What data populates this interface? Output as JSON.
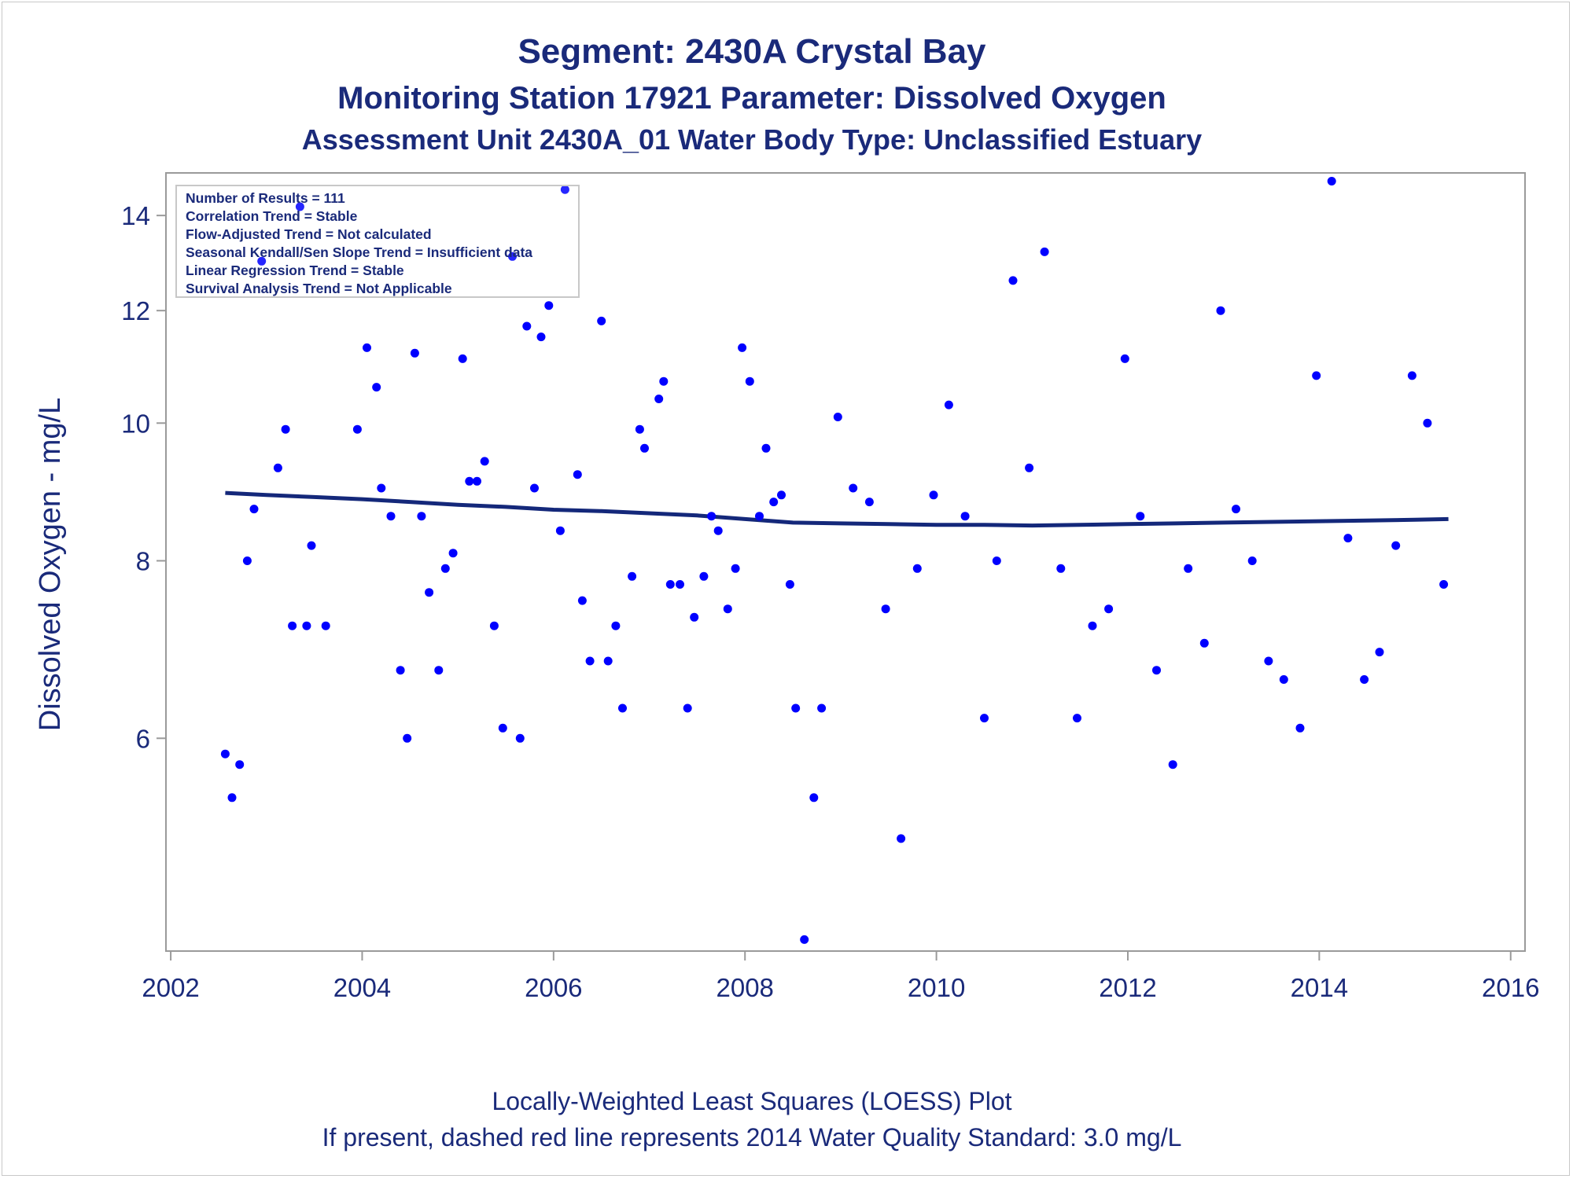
{
  "chart_data": {
    "type": "scatter",
    "title": "Segment: 2430A  Crystal Bay",
    "subtitle": "Monitoring Station 17921 Parameter: Dissolved Oxygen",
    "subtitle2": "Assessment Unit 2430A_01   Water Body Type: Unclassified Estuary",
    "xlabel": "",
    "ylabel": "Dissolved Oxygen - mg/L",
    "y_scale": "log",
    "xlim": [
      2001.95,
      2016.15
    ],
    "ylim": [
      4.25,
      15.0
    ],
    "x_ticks": [
      "2002",
      "2004",
      "2006",
      "2008",
      "2010",
      "2012",
      "2014",
      "2016"
    ],
    "y_ticks": [
      "6",
      "8",
      "10",
      "12",
      "14"
    ],
    "stats_box": [
      "Number of Results = 111",
      "Correlation Trend = Stable",
      "Flow-Adjusted Trend = Not calculated",
      "Seasonal Kendall/Sen Slope Trend = Insufficient data",
      "Linear Regression Trend = Stable",
      "Survival Analysis Trend = Not Applicable"
    ],
    "footnotes": [
      "Locally-Weighted Least Squares (LOESS) Plot",
      "If present, dashed red line represents 2014 Water Quality Standard: 3.0 mg/L"
    ],
    "colors": {
      "points": "#0000ff",
      "loess": "#14287a",
      "text": "#1a2a7a",
      "axis": "#9a9a9a"
    },
    "series": [
      {
        "type": "scatter",
        "points": [
          [
            2002.57,
            5.85
          ],
          [
            2002.64,
            5.45
          ],
          [
            2002.72,
            5.75
          ],
          [
            2002.8,
            8.0
          ],
          [
            2002.87,
            8.7
          ],
          [
            2002.95,
            13.0
          ],
          [
            2003.12,
            9.3
          ],
          [
            2003.2,
            9.9
          ],
          [
            2003.27,
            7.2
          ],
          [
            2003.35,
            14.2
          ],
          [
            2003.42,
            7.2
          ],
          [
            2003.47,
            8.2
          ],
          [
            2003.62,
            7.2
          ],
          [
            2003.95,
            9.9
          ],
          [
            2004.05,
            11.3
          ],
          [
            2004.15,
            10.6
          ],
          [
            2004.2,
            9.0
          ],
          [
            2004.3,
            8.6
          ],
          [
            2004.4,
            6.7
          ],
          [
            2004.47,
            6.0
          ],
          [
            2004.55,
            11.2
          ],
          [
            2004.62,
            8.6
          ],
          [
            2004.7,
            7.6
          ],
          [
            2004.8,
            6.7
          ],
          [
            2004.87,
            7.9
          ],
          [
            2004.95,
            8.1
          ],
          [
            2005.05,
            11.1
          ],
          [
            2005.12,
            9.1
          ],
          [
            2005.2,
            9.1
          ],
          [
            2005.28,
            9.4
          ],
          [
            2005.38,
            7.2
          ],
          [
            2005.47,
            6.1
          ],
          [
            2005.57,
            13.1
          ],
          [
            2005.65,
            6.0
          ],
          [
            2005.72,
            11.7
          ],
          [
            2005.8,
            9.0
          ],
          [
            2005.87,
            11.5
          ],
          [
            2005.95,
            12.1
          ],
          [
            2006.07,
            8.4
          ],
          [
            2006.12,
            14.6
          ],
          [
            2006.25,
            9.2
          ],
          [
            2006.3,
            7.5
          ],
          [
            2006.38,
            6.8
          ],
          [
            2006.5,
            11.8
          ],
          [
            2006.57,
            6.8
          ],
          [
            2006.65,
            7.2
          ],
          [
            2006.72,
            6.3
          ],
          [
            2006.82,
            7.8
          ],
          [
            2006.9,
            9.9
          ],
          [
            2006.95,
            9.6
          ],
          [
            2007.1,
            10.4
          ],
          [
            2007.15,
            10.7
          ],
          [
            2007.22,
            7.7
          ],
          [
            2007.32,
            7.7
          ],
          [
            2007.4,
            6.3
          ],
          [
            2007.47,
            7.3
          ],
          [
            2007.57,
            7.8
          ],
          [
            2007.65,
            8.6
          ],
          [
            2007.72,
            8.4
          ],
          [
            2007.82,
            7.4
          ],
          [
            2007.9,
            7.9
          ],
          [
            2007.97,
            11.3
          ],
          [
            2008.05,
            10.7
          ],
          [
            2008.15,
            8.6
          ],
          [
            2008.22,
            9.6
          ],
          [
            2008.3,
            8.8
          ],
          [
            2008.38,
            8.9
          ],
          [
            2008.47,
            7.7
          ],
          [
            2008.53,
            6.3
          ],
          [
            2008.62,
            4.33
          ],
          [
            2008.72,
            5.45
          ],
          [
            2008.8,
            6.3
          ],
          [
            2008.97,
            10.1
          ],
          [
            2009.13,
            9.0
          ],
          [
            2009.3,
            8.8
          ],
          [
            2009.47,
            7.4
          ],
          [
            2009.63,
            5.1
          ],
          [
            2009.8,
            7.9
          ],
          [
            2009.97,
            8.9
          ],
          [
            2010.13,
            10.3
          ],
          [
            2010.3,
            8.6
          ],
          [
            2010.5,
            6.2
          ],
          [
            2010.63,
            8.0
          ],
          [
            2010.8,
            12.6
          ],
          [
            2010.97,
            9.3
          ],
          [
            2011.13,
            13.2
          ],
          [
            2011.3,
            7.9
          ],
          [
            2011.47,
            6.2
          ],
          [
            2011.63,
            7.2
          ],
          [
            2011.8,
            7.4
          ],
          [
            2011.97,
            11.1
          ],
          [
            2012.13,
            8.6
          ],
          [
            2012.3,
            6.7
          ],
          [
            2012.47,
            5.75
          ],
          [
            2012.63,
            7.9
          ],
          [
            2012.8,
            7.0
          ],
          [
            2012.97,
            12.0
          ],
          [
            2013.13,
            8.7
          ],
          [
            2013.3,
            8.0
          ],
          [
            2013.47,
            6.8
          ],
          [
            2013.63,
            6.6
          ],
          [
            2013.8,
            6.1
          ],
          [
            2013.97,
            10.8
          ],
          [
            2014.13,
            14.8
          ],
          [
            2014.3,
            8.3
          ],
          [
            2014.47,
            6.6
          ],
          [
            2014.63,
            6.9
          ],
          [
            2014.8,
            8.2
          ],
          [
            2014.97,
            10.8
          ],
          [
            2015.13,
            10.0
          ],
          [
            2015.3,
            7.7
          ]
        ]
      },
      {
        "type": "line",
        "points": [
          [
            2002.57,
            8.93
          ],
          [
            2003.0,
            8.9
          ],
          [
            2003.5,
            8.87
          ],
          [
            2004.0,
            8.84
          ],
          [
            2004.5,
            8.8
          ],
          [
            2005.0,
            8.76
          ],
          [
            2005.5,
            8.73
          ],
          [
            2006.0,
            8.69
          ],
          [
            2006.5,
            8.67
          ],
          [
            2007.0,
            8.64
          ],
          [
            2007.5,
            8.61
          ],
          [
            2008.0,
            8.56
          ],
          [
            2008.5,
            8.51
          ],
          [
            2009.0,
            8.5
          ],
          [
            2009.5,
            8.49
          ],
          [
            2010.0,
            8.48
          ],
          [
            2010.5,
            8.48
          ],
          [
            2011.0,
            8.47
          ],
          [
            2011.5,
            8.48
          ],
          [
            2012.0,
            8.49
          ],
          [
            2012.5,
            8.5
          ],
          [
            2013.0,
            8.51
          ],
          [
            2013.5,
            8.52
          ],
          [
            2014.0,
            8.53
          ],
          [
            2014.5,
            8.54
          ],
          [
            2015.0,
            8.55
          ],
          [
            2015.35,
            8.56
          ]
        ]
      }
    ]
  }
}
